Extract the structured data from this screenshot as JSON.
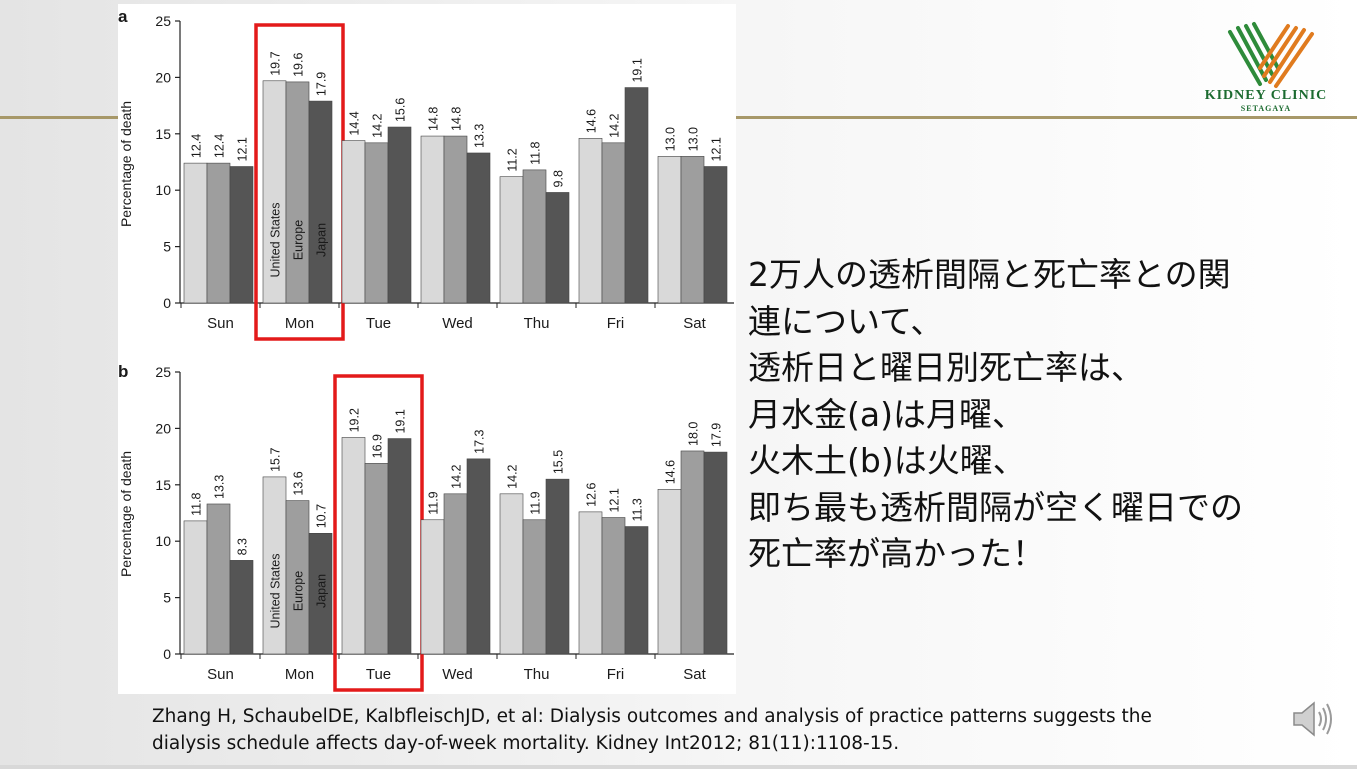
{
  "slide": {
    "logo": {
      "title": "KIDNEY CLINIC",
      "subtitle": "SETAGAYA",
      "icon": "kidney-clinic-logo-icon",
      "colors": [
        "#2e8b3a",
        "#e07b1f"
      ]
    },
    "body_lines": [
      "2万人の透析間隔と死亡率との関",
      "連について、",
      "透析日と曜日別死亡率は、",
      "月水金(a)は月曜、",
      "火木土(b)は火曜、",
      "即ち最も透析間隔が空く曜日での",
      "死亡率が高かった！"
    ],
    "citation_lines": [
      "Zhang H, SchaubelDE, KalbfleischJD, et al: Dialysis outcomes and analysis of practice patterns suggests the",
      "dialysis schedule affects day-of-week mortality. Kidney Int2012; 81(11):1108-15."
    ],
    "speaker_icon": "speaker-icon",
    "highlight_color": "#e31a1a"
  },
  "chart_data": [
    {
      "type": "bar",
      "panel_label": "a",
      "ylabel": "Percentage of death",
      "ylim": [
        0,
        25
      ],
      "yticks": [
        0,
        5,
        10,
        15,
        20,
        25
      ],
      "categories": [
        "Sun",
        "Mon",
        "Tue",
        "Wed",
        "Thu",
        "Fri",
        "Sat"
      ],
      "series": [
        {
          "name": "United States",
          "color": "#d9d9d9",
          "values": [
            12.4,
            19.7,
            14.4,
            14.8,
            11.2,
            14.6,
            13.0
          ]
        },
        {
          "name": "Europe",
          "color": "#9e9e9e",
          "values": [
            12.4,
            19.6,
            14.2,
            14.8,
            11.8,
            14.2,
            13.0
          ]
        },
        {
          "name": "Japan",
          "color": "#555555",
          "values": [
            12.1,
            17.9,
            15.6,
            13.3,
            9.8,
            19.1,
            12.1
          ]
        }
      ],
      "value_labels": [
        [
          "12.4",
          "19.7",
          "14.4",
          "14.8",
          "11.2",
          "14.6",
          "13.0"
        ],
        [
          "12.4",
          "19.6",
          "14.2",
          "14.8",
          "11.8",
          "14.2",
          "13.0"
        ],
        [
          "12.1",
          "17.9",
          "15.6",
          "13.3",
          "9.8",
          "19.1",
          "12.1"
        ]
      ],
      "legend_category": "Mon",
      "highlight_category": "Mon",
      "grid": false
    },
    {
      "type": "bar",
      "panel_label": "b",
      "ylabel": "Percentage of death",
      "ylim": [
        0,
        25
      ],
      "yticks": [
        0,
        5,
        10,
        15,
        20,
        25
      ],
      "categories": [
        "Sun",
        "Mon",
        "Tue",
        "Wed",
        "Thu",
        "Fri",
        "Sat"
      ],
      "series": [
        {
          "name": "United States",
          "color": "#d9d9d9",
          "values": [
            11.8,
            15.7,
            19.2,
            11.9,
            14.2,
            12.6,
            14.6
          ]
        },
        {
          "name": "Europe",
          "color": "#9e9e9e",
          "values": [
            13.3,
            13.6,
            16.9,
            14.2,
            11.9,
            12.1,
            18.0
          ]
        },
        {
          "name": "Japan",
          "color": "#555555",
          "values": [
            8.3,
            10.7,
            19.1,
            17.3,
            15.5,
            11.3,
            17.9
          ]
        }
      ],
      "value_labels": [
        [
          "11.8",
          "15.7",
          "19.2",
          "11.9",
          "14.2",
          "12.6",
          "14.6"
        ],
        [
          "13.3",
          "13.6",
          "16.9",
          "14.2",
          "11.9",
          "12.1",
          "18.0"
        ],
        [
          "8.3",
          "10.7",
          "19.1",
          "17.3",
          "15.5",
          "11.3",
          "17.9"
        ]
      ],
      "legend_category": "Mon",
      "highlight_category": "Tue",
      "grid": false
    }
  ]
}
